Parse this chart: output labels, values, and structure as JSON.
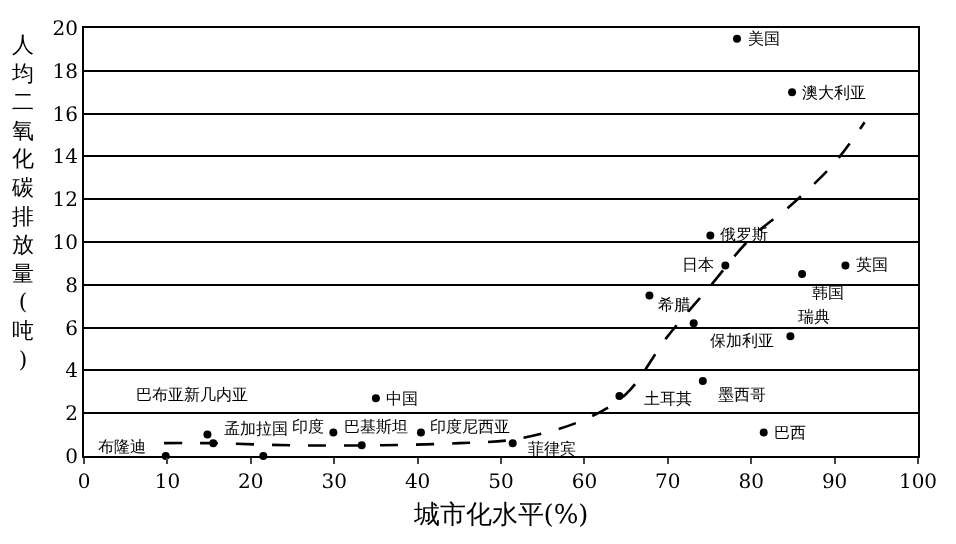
{
  "chart_data": {
    "type": "scatter",
    "xlabel": "城市化水平(%)",
    "ylabel": "人均二氧化碳排放量(吨)",
    "xlim": [
      0,
      100
    ],
    "xticks": [
      0,
      10,
      20,
      30,
      40,
      50,
      60,
      70,
      80,
      90,
      100
    ],
    "ylim": [
      0,
      20
    ],
    "yticks": [
      0,
      2,
      4,
      6,
      8,
      10,
      12,
      14,
      16,
      18,
      20
    ],
    "grid": "y",
    "series": [
      {
        "marker": "circle",
        "color": "#000000",
        "x": [
          78.3,
          84.9,
          75.1,
          76.9,
          86.1,
          91.3,
          67.8,
          73.1,
          84.7,
          74.2,
          64.2,
          81.5,
          51.4,
          40.4,
          29.9,
          33.3,
          15.5,
          14.8,
          9.8,
          21.5,
          35.0
        ],
        "values": [
          19.5,
          17.0,
          10.3,
          8.9,
          8.5,
          8.9,
          7.5,
          6.2,
          5.6,
          3.5,
          2.8,
          1.1,
          0.6,
          1.1,
          1.1,
          0.5,
          0.6,
          1.0,
          0.0,
          0.0,
          2.7
        ]
      },
      {
        "type": "line",
        "color": "#000000",
        "line_style": "dashed",
        "marker": "none",
        "x": [
          9.6,
          15,
          25,
          35,
          45,
          52,
          60,
          65,
          70,
          75,
          80,
          85,
          90,
          93.6
        ],
        "values": [
          0.6,
          0.6,
          0.5,
          0.5,
          0.6,
          0.8,
          1.7,
          2.9,
          5.6,
          7.9,
          10.2,
          11.8,
          13.7,
          15.6
        ]
      }
    ],
    "annotations": [
      {
        "text": "美国",
        "x": 78.3,
        "y": 19.5
      },
      {
        "text": "澳大利亚",
        "x": 84.9,
        "y": 17.0
      },
      {
        "text": "俄罗斯",
        "x": 75.1,
        "y": 10.3
      },
      {
        "text": "日本",
        "x": 76.9,
        "y": 8.9
      },
      {
        "text": "韩国",
        "x": 86.1,
        "y": 8.5
      },
      {
        "text": "英国",
        "x": 91.3,
        "y": 8.9
      },
      {
        "text": "希腊",
        "x": 67.8,
        "y": 7.5
      },
      {
        "text": "保加利亚",
        "x": 73.1,
        "y": 6.2
      },
      {
        "text": "瑞典",
        "x": 84.7,
        "y": 5.6
      },
      {
        "text": "墨西哥",
        "x": 74.2,
        "y": 3.5
      },
      {
        "text": "土耳其",
        "x": 64.2,
        "y": 2.8
      },
      {
        "text": "巴西",
        "x": 81.5,
        "y": 1.1
      },
      {
        "text": "菲律宾",
        "x": 51.4,
        "y": 0.6
      },
      {
        "text": "印度尼西亚",
        "x": 40.4,
        "y": 1.1
      },
      {
        "text": "印度",
        "x": 29.9,
        "y": 1.1
      },
      {
        "text": "巴基斯坦",
        "x": 29.9,
        "y": 1.1
      },
      {
        "text": "孟加拉国",
        "x": 15.5,
        "y": 0.6
      },
      {
        "text": "巴布亚新几内亚",
        "x": 14.8,
        "y": 1.0
      },
      {
        "text": "布隆迪",
        "x": 9.8,
        "y": 0.0
      },
      {
        "text": "中国",
        "x": 35.0,
        "y": 2.7
      }
    ]
  }
}
